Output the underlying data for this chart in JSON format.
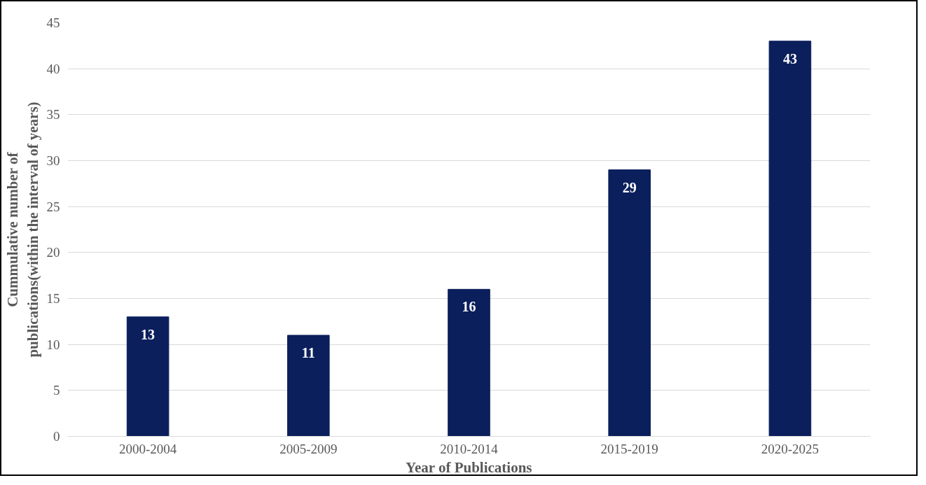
{
  "chart_data": {
    "type": "bar",
    "xlabel": "Year of Publications",
    "ylabel": "Cummulative number of\npublications(within the interval of years)",
    "categories": [
      "2000-2004",
      "2005-2009",
      "2010-2014",
      "2015-2019",
      "2020-2025"
    ],
    "values": [
      13,
      11,
      16,
      29,
      43
    ],
    "color": "#0b1f5c",
    "ylim": [
      0,
      45
    ],
    "yticks": [
      0,
      5,
      10,
      15,
      20,
      25,
      30,
      35,
      40,
      45
    ],
    "grid": "y",
    "data_labels": true
  }
}
